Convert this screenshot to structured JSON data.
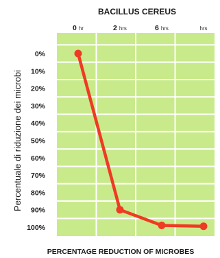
{
  "chart_data": {
    "type": "line",
    "title": "BACILLUS CEREUS",
    "xlabel": "PERCENTAGE REDUCTION OF MICROBES",
    "ylabel": "Percentuale di riduzione dei microbi",
    "x_ticks": [
      {
        "num": "0",
        "unit": "hr"
      },
      {
        "num": "2",
        "unit": "hrs"
      },
      {
        "num": "6",
        "unit": "hrs"
      },
      {
        "num": "",
        "unit": "hrs"
      }
    ],
    "y_ticks": [
      "0%",
      "10%",
      "20%",
      "30%",
      "40%",
      "50%",
      "60%",
      "70%",
      "80%",
      "90%",
      "100%"
    ],
    "ylim": [
      0,
      100
    ],
    "y_inverted": true,
    "grid": true,
    "series": [
      {
        "values": [
          0,
          90,
          99,
          99.5
        ]
      }
    ],
    "colors": {
      "plot_background": "#c9ea8a",
      "grid": "#ffffff",
      "line": "#ef3a24",
      "text": "#1a1a1a"
    }
  }
}
